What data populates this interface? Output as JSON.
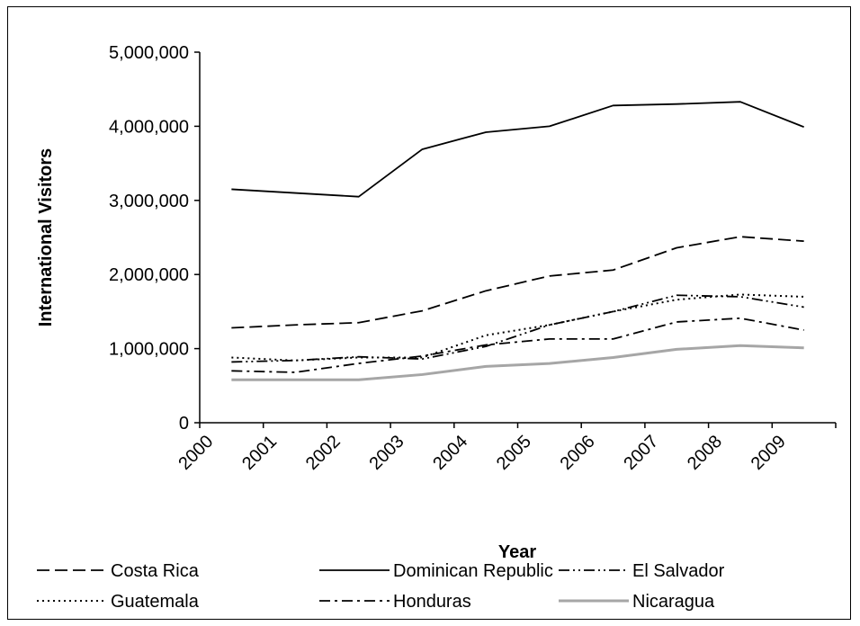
{
  "chart_data": {
    "type": "line",
    "title": "",
    "xlabel": "Year",
    "ylabel": "International Visitors",
    "categories": [
      "2000",
      "2001",
      "2002",
      "2003",
      "2004",
      "2005",
      "2006",
      "2007",
      "2008",
      "2009"
    ],
    "ylim": [
      0,
      5000000
    ],
    "yticks": [
      "0",
      "1,000,000",
      "2,000,000",
      "3,000,000",
      "4,000,000",
      "5,000,000"
    ],
    "grid": false,
    "legend_position": "bottom",
    "series": [
      {
        "name": "Costa Rica",
        "style": "dash",
        "color": "#000000",
        "values": [
          1280000,
          1320000,
          1350000,
          1510000,
          1780000,
          1980000,
          2060000,
          2360000,
          2510000,
          2450000
        ]
      },
      {
        "name": "Dominican Republic",
        "style": "solid",
        "color": "#000000",
        "values": [
          3150000,
          3100000,
          3050000,
          3690000,
          3920000,
          4000000,
          4280000,
          4300000,
          4330000,
          3990000
        ]
      },
      {
        "name": "El Salvador",
        "style": "dashdotdot",
        "color": "#000000",
        "values": [
          820000,
          840000,
          890000,
          860000,
          1030000,
          1320000,
          1500000,
          1720000,
          1700000,
          1560000
        ]
      },
      {
        "name": "Guatemala",
        "style": "dot",
        "color": "#000000",
        "values": [
          880000,
          840000,
          880000,
          880000,
          1180000,
          1320000,
          1500000,
          1660000,
          1730000,
          1700000
        ]
      },
      {
        "name": "Honduras",
        "style": "dashdot",
        "color": "#000000",
        "values": [
          700000,
          680000,
          800000,
          900000,
          1050000,
          1130000,
          1130000,
          1360000,
          1410000,
          1250000
        ]
      },
      {
        "name": "Nicaragua",
        "style": "gray",
        "color": "#a6a6a6",
        "values": [
          580000,
          580000,
          580000,
          650000,
          760000,
          800000,
          880000,
          990000,
          1040000,
          1010000
        ]
      }
    ]
  }
}
